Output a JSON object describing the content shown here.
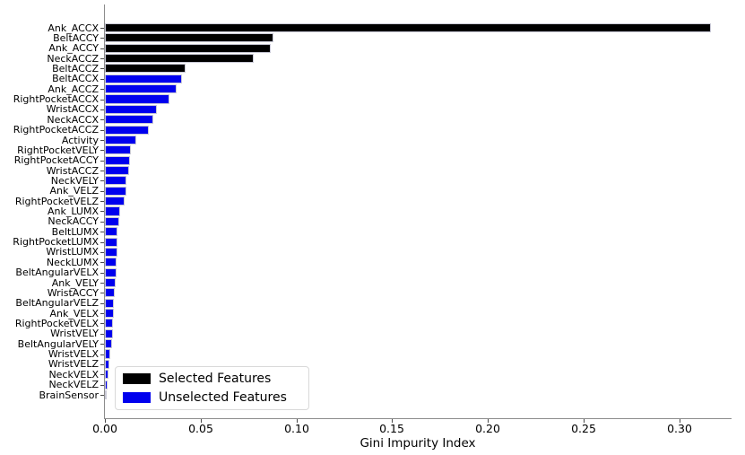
{
  "chart_data": {
    "type": "bar",
    "orientation": "horizontal",
    "title": "",
    "xlabel": "Gini Impurity Index",
    "ylabel": "",
    "xlim": [
      0,
      0.327
    ],
    "xticks": [
      "0.00",
      "0.05",
      "0.10",
      "0.15",
      "0.20",
      "0.25",
      "0.30"
    ],
    "grid": false,
    "legend_position": "lower left inside plot",
    "legend": {
      "selected_label": "Selected Features",
      "unselected_label": "Unselected Features"
    },
    "colors": {
      "selected": "#000000",
      "unselected": "#0000ee",
      "bar_edge": "#c9c9d6",
      "spine": "#8c8c8c",
      "tick": "#4a4a4a"
    },
    "items": [
      {
        "label": "Ank_ACCX",
        "value": 0.3165,
        "selected": true
      },
      {
        "label": "BeltACCY",
        "value": 0.0878,
        "selected": true
      },
      {
        "label": "Ank_ACCY",
        "value": 0.0868,
        "selected": true
      },
      {
        "label": "NeckACCZ",
        "value": 0.0778,
        "selected": true
      },
      {
        "label": "BeltACCZ",
        "value": 0.0422,
        "selected": true
      },
      {
        "label": "BeltACCX",
        "value": 0.0403,
        "selected": false
      },
      {
        "label": "Ank_ACCZ",
        "value": 0.0375,
        "selected": false
      },
      {
        "label": "RightPocketACCX",
        "value": 0.0337,
        "selected": false
      },
      {
        "label": "WristACCX",
        "value": 0.0272,
        "selected": false
      },
      {
        "label": "NeckACCX",
        "value": 0.0253,
        "selected": false
      },
      {
        "label": "RightPocketACCZ",
        "value": 0.0229,
        "selected": false
      },
      {
        "label": "Activity",
        "value": 0.0164,
        "selected": false
      },
      {
        "label": "RightPocketVELY",
        "value": 0.0135,
        "selected": false
      },
      {
        "label": "RightPocketACCY",
        "value": 0.0131,
        "selected": false
      },
      {
        "label": "WristACCZ",
        "value": 0.0128,
        "selected": false
      },
      {
        "label": "NeckVELY",
        "value": 0.0113,
        "selected": false
      },
      {
        "label": "Ank_VELZ",
        "value": 0.0112,
        "selected": false
      },
      {
        "label": "RightPocketVELZ",
        "value": 0.0103,
        "selected": false
      },
      {
        "label": "Ank_LUMX",
        "value": 0.008,
        "selected": false
      },
      {
        "label": "NeckACCY",
        "value": 0.0075,
        "selected": false
      },
      {
        "label": "BeltLUMX",
        "value": 0.0066,
        "selected": false
      },
      {
        "label": "RightPocketLUMX",
        "value": 0.0066,
        "selected": false
      },
      {
        "label": "WristLUMX",
        "value": 0.0065,
        "selected": false
      },
      {
        "label": "NeckLUMX",
        "value": 0.0061,
        "selected": false
      },
      {
        "label": "BeltAngularVELX",
        "value": 0.006,
        "selected": false
      },
      {
        "label": "Ank_VELY",
        "value": 0.0056,
        "selected": false
      },
      {
        "label": "WristACCY",
        "value": 0.0052,
        "selected": false
      },
      {
        "label": "BeltAngularVELZ",
        "value": 0.0047,
        "selected": false
      },
      {
        "label": "Ank_VELX",
        "value": 0.0046,
        "selected": false
      },
      {
        "label": "RightPocketVELX",
        "value": 0.0042,
        "selected": false
      },
      {
        "label": "WristVELY",
        "value": 0.0041,
        "selected": false
      },
      {
        "label": "BeltAngularVELY",
        "value": 0.0038,
        "selected": false
      },
      {
        "label": "WristVELX",
        "value": 0.0028,
        "selected": false
      },
      {
        "label": "WristVELZ",
        "value": 0.0023,
        "selected": false
      },
      {
        "label": "NeckVELX",
        "value": 0.0019,
        "selected": false
      },
      {
        "label": "NeckVELZ",
        "value": 0.0014,
        "selected": false
      },
      {
        "label": "BrainSensor",
        "value": 0.0007,
        "selected": false
      }
    ]
  }
}
